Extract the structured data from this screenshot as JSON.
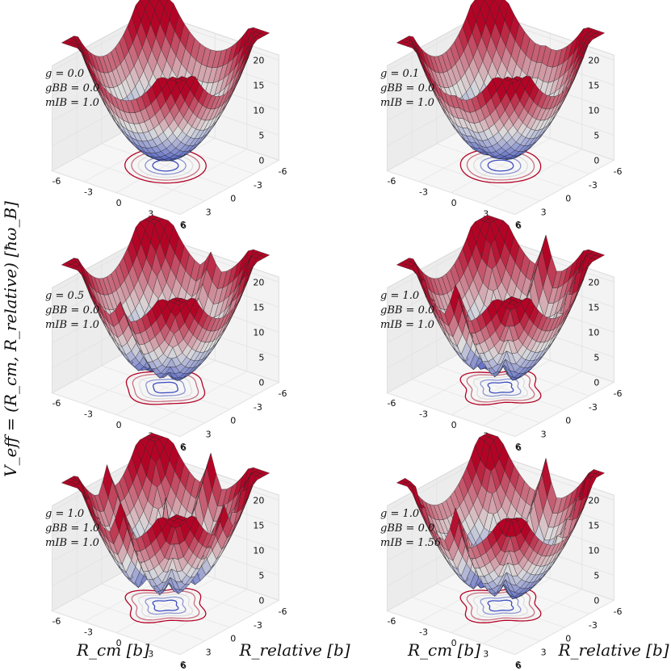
{
  "chart_data": {
    "type": "surface3d",
    "xlabel": "R_cm [b]",
    "ylabel": "R_relative [b]",
    "zlabel": "V_eff = (R_cm, R_relative) [ħω_B]",
    "xticks": [
      -6,
      -3,
      0,
      3,
      6
    ],
    "yticks": [
      -6,
      -3,
      0,
      3,
      6
    ],
    "zticks": [
      0,
      5,
      10,
      15,
      20
    ],
    "zlim": [
      0,
      20
    ],
    "panels": [
      {
        "g": "0.0",
        "gBB": "0.0",
        "mIB": "1.0",
        "lines": [
          "g = 0.0",
          "gBB = 0.0",
          "mIB = 1.0"
        ]
      },
      {
        "g": "0.1",
        "gBB": "0.0",
        "mIB": "1.0",
        "lines": [
          "g = 0.1",
          "gBB = 0.0",
          "mIB = 1.0"
        ]
      },
      {
        "g": "0.5",
        "gBB": "0.0",
        "mIB": "1.0",
        "lines": [
          "g = 0.5",
          "gBB = 0.0",
          "mIB = 1.0"
        ]
      },
      {
        "g": "1.0",
        "gBB": "0.0",
        "mIB": "1.0",
        "lines": [
          "g = 1.0",
          "gBB = 0.0",
          "mIB = 1.0"
        ]
      },
      {
        "g": "1.0",
        "gBB": "1.0",
        "mIB": "1.0",
        "lines": [
          "g = 1.0",
          "gBB = 1.0",
          "mIB = 1.0"
        ]
      },
      {
        "g": "1.0",
        "gBB": "0.0",
        "mIB": "1.56",
        "lines": [
          "g = 1.0",
          "gBB = 0.0",
          "mIB = 1.56"
        ]
      }
    ],
    "colormap": {
      "low": "#3b4cc0",
      "mid": "#dddddd",
      "high": "#b40426"
    }
  }
}
